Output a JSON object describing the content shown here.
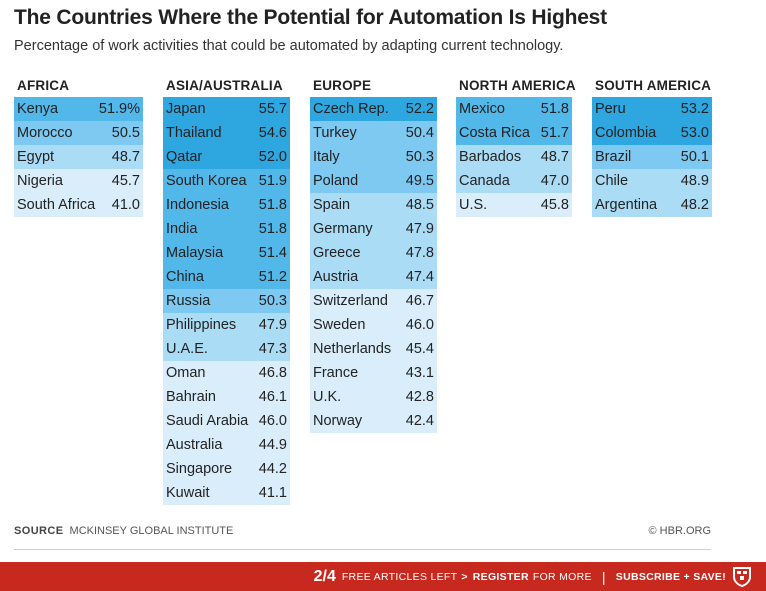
{
  "title": "The Countries Where the Potential for Automation Is Highest",
  "subtitle": "Percentage of work activities that could be automated by adapting current technology.",
  "colors": {
    "band_52_plus": "#2ea6e0",
    "band_51": "#52b8ea",
    "band_49_50": "#7ec9f1",
    "band_47_49": "#abdcf6",
    "band_below_47": "#d9eefa",
    "footer_bar": "#c8291f"
  },
  "chart_data": {
    "type": "table",
    "unit": "%",
    "regions": [
      {
        "name": "AFRICA",
        "rows": [
          {
            "country": "Kenya",
            "value": "51.9%"
          },
          {
            "country": "Morocco",
            "value": "50.5"
          },
          {
            "country": "Egypt",
            "value": "48.7"
          },
          {
            "country": "Nigeria",
            "value": "45.7"
          },
          {
            "country": "South Africa",
            "value": "41.0"
          }
        ]
      },
      {
        "name": "ASIA/AUSTRALIA",
        "rows": [
          {
            "country": "Japan",
            "value": "55.7"
          },
          {
            "country": "Thailand",
            "value": "54.6"
          },
          {
            "country": "Qatar",
            "value": "52.0"
          },
          {
            "country": "South Korea",
            "value": "51.9"
          },
          {
            "country": "Indonesia",
            "value": "51.8"
          },
          {
            "country": "India",
            "value": "51.8"
          },
          {
            "country": "Malaysia",
            "value": "51.4"
          },
          {
            "country": "China",
            "value": "51.2"
          },
          {
            "country": "Russia",
            "value": "50.3"
          },
          {
            "country": "Philippines",
            "value": "47.9"
          },
          {
            "country": "U.A.E.",
            "value": "47.3"
          },
          {
            "country": "Oman",
            "value": "46.8"
          },
          {
            "country": "Bahrain",
            "value": "46.1"
          },
          {
            "country": "Saudi Arabia",
            "value": "46.0"
          },
          {
            "country": "Australia",
            "value": "44.9"
          },
          {
            "country": "Singapore",
            "value": "44.2"
          },
          {
            "country": "Kuwait",
            "value": "41.1"
          }
        ]
      },
      {
        "name": "EUROPE",
        "rows": [
          {
            "country": "Czech Rep.",
            "value": "52.2"
          },
          {
            "country": "Turkey",
            "value": "50.4"
          },
          {
            "country": "Italy",
            "value": "50.3"
          },
          {
            "country": "Poland",
            "value": "49.5"
          },
          {
            "country": "Spain",
            "value": "48.5"
          },
          {
            "country": "Germany",
            "value": "47.9"
          },
          {
            "country": "Greece",
            "value": "47.8"
          },
          {
            "country": "Austria",
            "value": "47.4"
          },
          {
            "country": "Switzerland",
            "value": "46.7"
          },
          {
            "country": "Sweden",
            "value": "46.0"
          },
          {
            "country": "Netherlands",
            "value": "45.4"
          },
          {
            "country": "France",
            "value": "43.1"
          },
          {
            "country": "U.K.",
            "value": "42.8"
          },
          {
            "country": "Norway",
            "value": "42.4"
          }
        ]
      },
      {
        "name": "NORTH AMERICA",
        "rows": [
          {
            "country": "Mexico",
            "value": "51.8"
          },
          {
            "country": "Costa Rica",
            "value": "51.7"
          },
          {
            "country": "Barbados",
            "value": "48.7"
          },
          {
            "country": "Canada",
            "value": "47.0"
          },
          {
            "country": "U.S.",
            "value": "45.8"
          }
        ]
      },
      {
        "name": "SOUTH AMERICA",
        "rows": [
          {
            "country": "Peru",
            "value": "53.2"
          },
          {
            "country": "Colombia",
            "value": "53.0"
          },
          {
            "country": "Brazil",
            "value": "50.1"
          },
          {
            "country": "Chile",
            "value": "48.9"
          },
          {
            "country": "Argentina",
            "value": "48.2"
          }
        ]
      }
    ]
  },
  "source": {
    "label": "SOURCE",
    "text": "MCKINSEY GLOBAL INSTITUTE"
  },
  "credit": "© HBR.ORG",
  "footer": {
    "count": "2/4",
    "free_text": "FREE ARTICLES LEFT",
    "caret": ">",
    "register": "REGISTER",
    "for_more": "FOR MORE",
    "separator": "|",
    "subscribe": "SUBSCRIBE + SAVE!",
    "shield_icon": "hbr-shield-icon"
  }
}
